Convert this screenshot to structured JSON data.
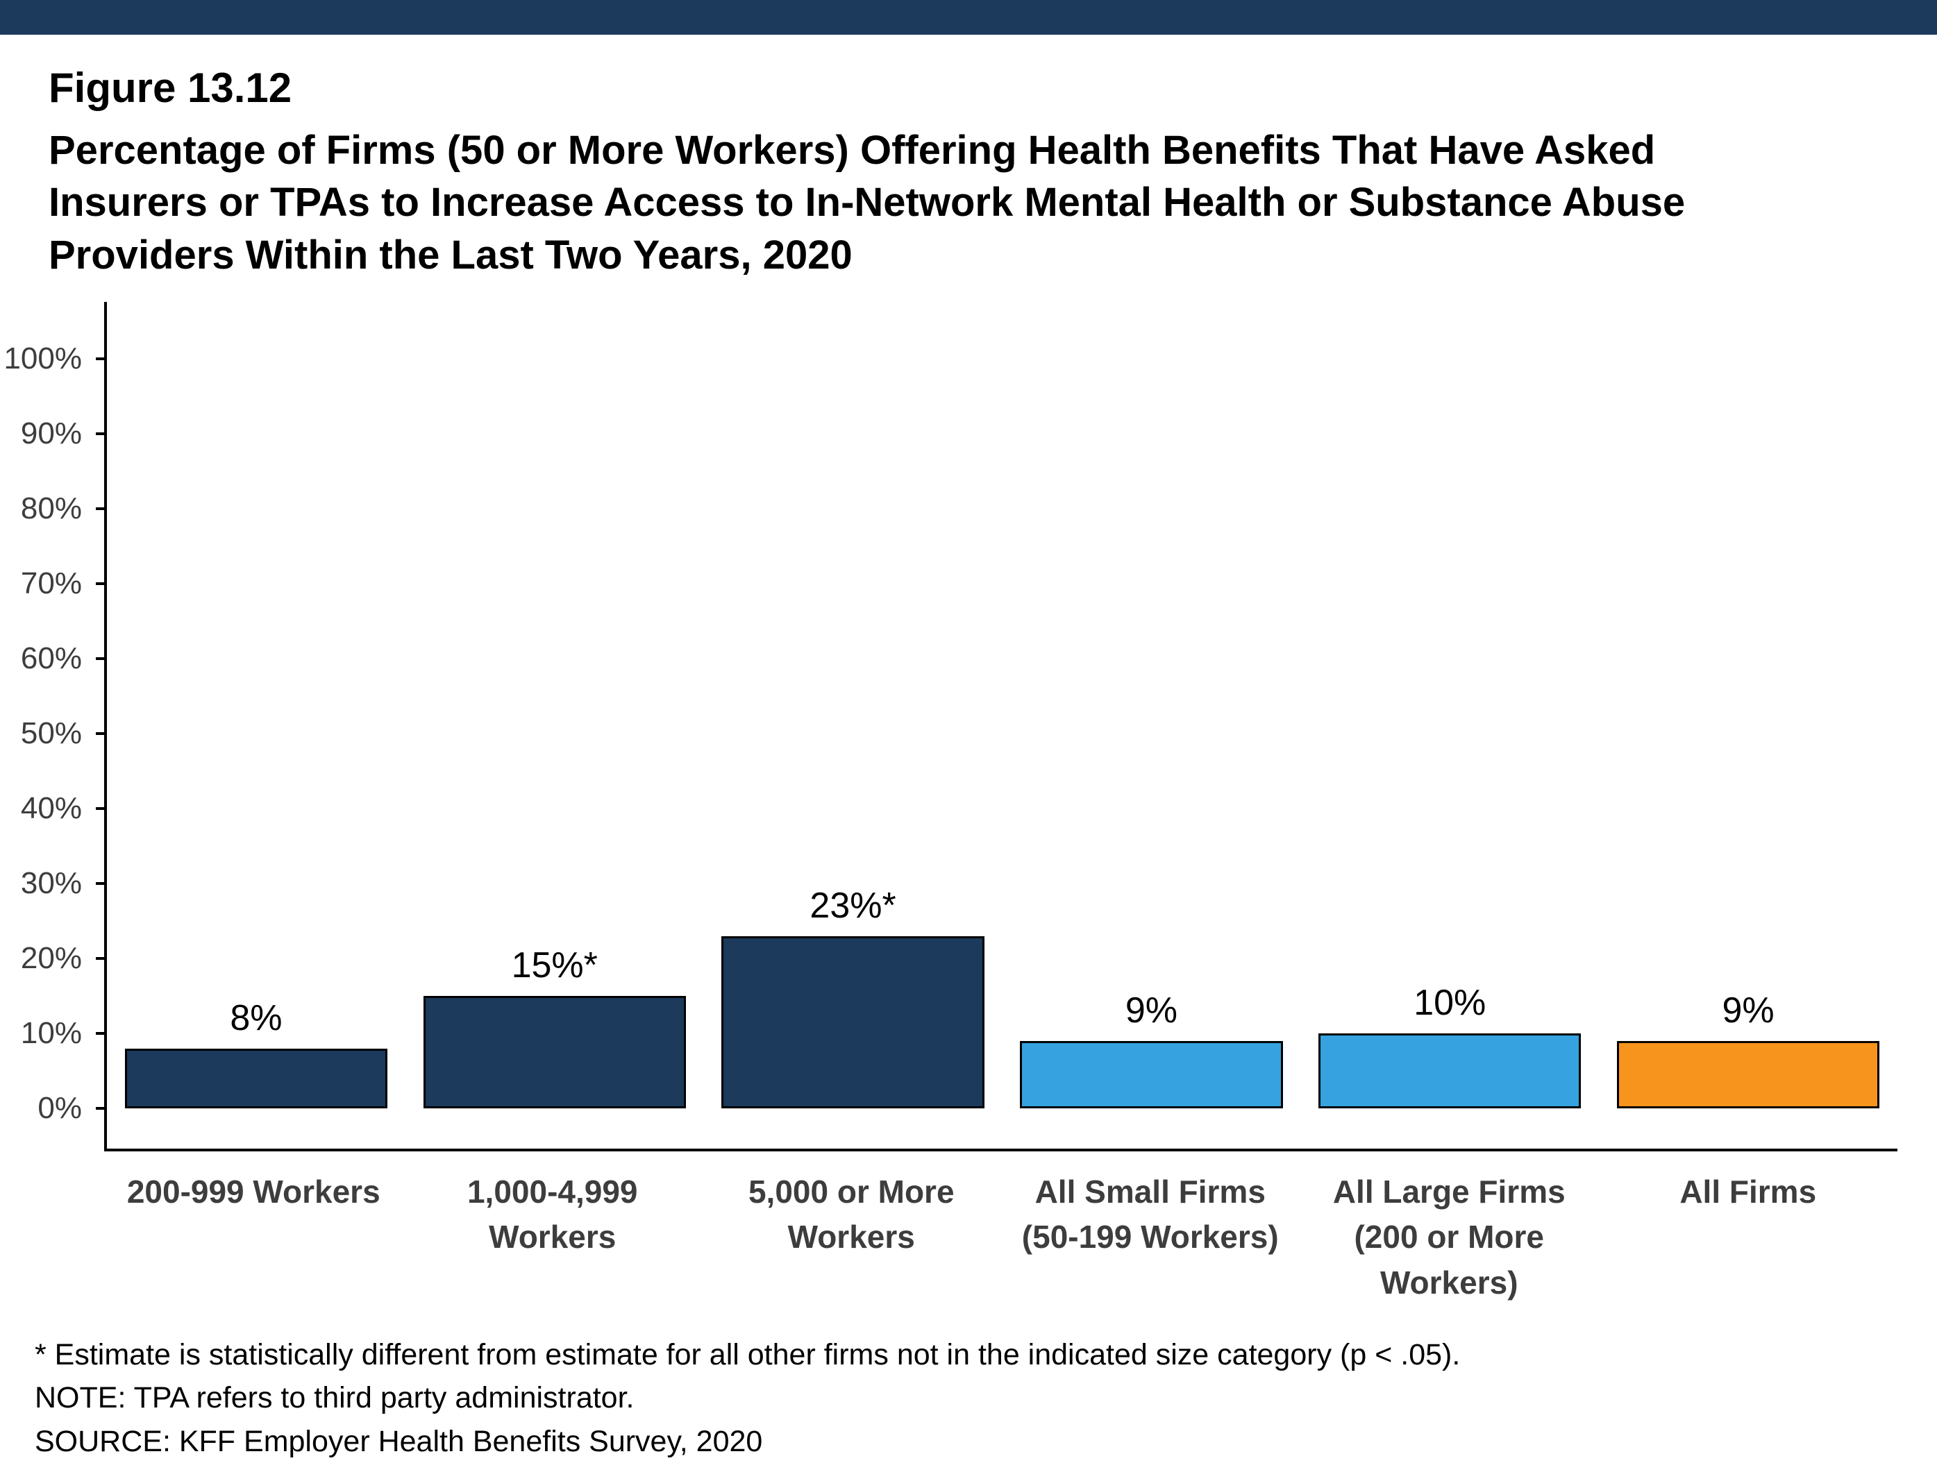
{
  "top_bar": {
    "color": "#1b3a5c"
  },
  "header": {
    "figure_label": "Figure 13.12",
    "title_lines": [
      "Percentage of Firms (50 or More Workers) Offering Health Benefits That Have Asked",
      "Insurers or TPAs to Increase Access to In-Network Mental Health or Substance Abuse",
      "Providers Within the Last Two Years, 2020"
    ]
  },
  "chart_data": {
    "type": "bar",
    "title": "Percentage of Firms (50 or More Workers) Offering Health Benefits That Have Asked Insurers or TPAs to Increase Access to In-Network Mental Health or Substance Abuse Providers Within the Last Two Years, 2020",
    "categories": [
      [
        "200-999 Workers"
      ],
      [
        "1,000-4,999 Workers"
      ],
      [
        "5,000 or More",
        "Workers"
      ],
      [
        "All Small Firms",
        "(50-199 Workers)"
      ],
      [
        "All Large Firms",
        "(200 or More",
        "Workers)"
      ],
      [
        "All Firms"
      ]
    ],
    "values": [
      8,
      15,
      23,
      9,
      10,
      9
    ],
    "data_labels": [
      "8%",
      "15%*",
      "23%*",
      "9%",
      "10%",
      "9%"
    ],
    "bar_colors": [
      "#1b3a5c",
      "#1b3a5c",
      "#1b3a5c",
      "#36a2df",
      "#36a2df",
      "#f7941e"
    ],
    "ylim": [
      0,
      100
    ],
    "ytick_step": 10,
    "ytick_labels": [
      "0%",
      "10%",
      "20%",
      "30%",
      "40%",
      "50%",
      "60%",
      "70%",
      "80%",
      "90%",
      "100%"
    ],
    "grid": false,
    "legend": "none",
    "xlabel": "",
    "ylabel": ""
  },
  "footnotes": [
    "* Estimate is statistically different from estimate for all other firms not in the indicated size category (p < .05).",
    "NOTE: TPA refers to third party administrator.",
    "SOURCE: KFF Employer Health Benefits Survey, 2020"
  ]
}
